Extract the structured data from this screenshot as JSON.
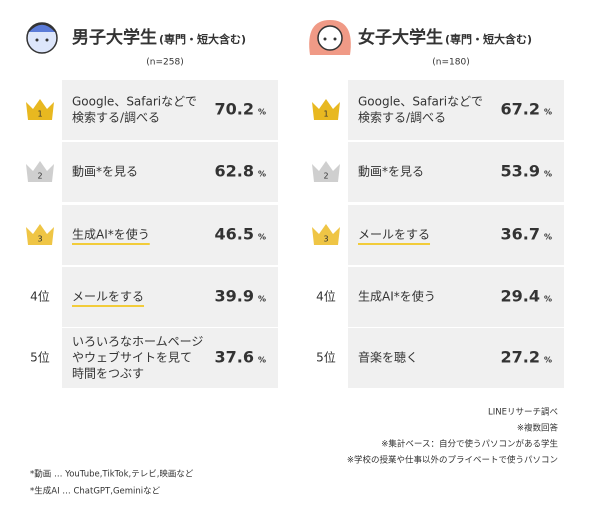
{
  "panels": [
    {
      "title": "男子大学生",
      "subtitle": "(専門・短大含む)",
      "n": "(n=258)",
      "color": "#4a64c8",
      "items": [
        {
          "rank": "1",
          "crown": "#e8b820",
          "lines": [
            "Google、Safariなどで",
            "検索する/調べる"
          ],
          "pct": "70.2",
          "unit": "%",
          "underline": false
        },
        {
          "rank": "2",
          "crown": "#cfcfcf",
          "lines": [
            "動画*を見る"
          ],
          "pct": "62.8",
          "unit": "%",
          "underline": false
        },
        {
          "rank": "3",
          "crown": "#efc545",
          "lines": [
            "生成AI*を使う"
          ],
          "pct": "46.5",
          "unit": "%",
          "underline": true
        },
        {
          "rank": "4位",
          "lines": [
            "メールをする"
          ],
          "pct": "39.9",
          "unit": "%",
          "underline": true
        },
        {
          "rank": "5位",
          "lines": [
            "いろいろなホームページ",
            "やウェブサイトを見て",
            "時間をつぶす"
          ],
          "pct": "37.6",
          "unit": "%",
          "underline": false
        }
      ]
    },
    {
      "title": "女子大学生",
      "subtitle": "(専門・短大含む)",
      "n": "(n=180)",
      "color": "#e8775a",
      "items": [
        {
          "rank": "1",
          "crown": "#e8b820",
          "lines": [
            "Google、Safariなどで",
            "検索する/調べる"
          ],
          "pct": "67.2",
          "unit": "%",
          "underline": false
        },
        {
          "rank": "2",
          "crown": "#cfcfcf",
          "lines": [
            "動画*を見る"
          ],
          "pct": "53.9",
          "unit": "%",
          "underline": false
        },
        {
          "rank": "3",
          "crown": "#efc545",
          "lines": [
            "メールをする"
          ],
          "pct": "36.7",
          "unit": "%",
          "underline": true
        },
        {
          "rank": "4位",
          "lines": [
            "生成AI*を使う"
          ],
          "pct": "29.4",
          "unit": "%",
          "underline": false
        },
        {
          "rank": "5位",
          "lines": [
            "音楽を聴く"
          ],
          "pct": "27.2",
          "unit": "%",
          "underline": false
        }
      ]
    }
  ],
  "notes_right": [
    "LINEリサーチ調べ",
    "※複数回答",
    "※集計ベース：自分で使うパソコンがある学生",
    "※学校の授業や仕事以外のプライベートで使うパソコン"
  ],
  "notes_left": [
    "*動画 … YouTube,TikTok,テレビ,映画など",
    "*生成AI … ChatGPT,Geminiなど"
  ]
}
